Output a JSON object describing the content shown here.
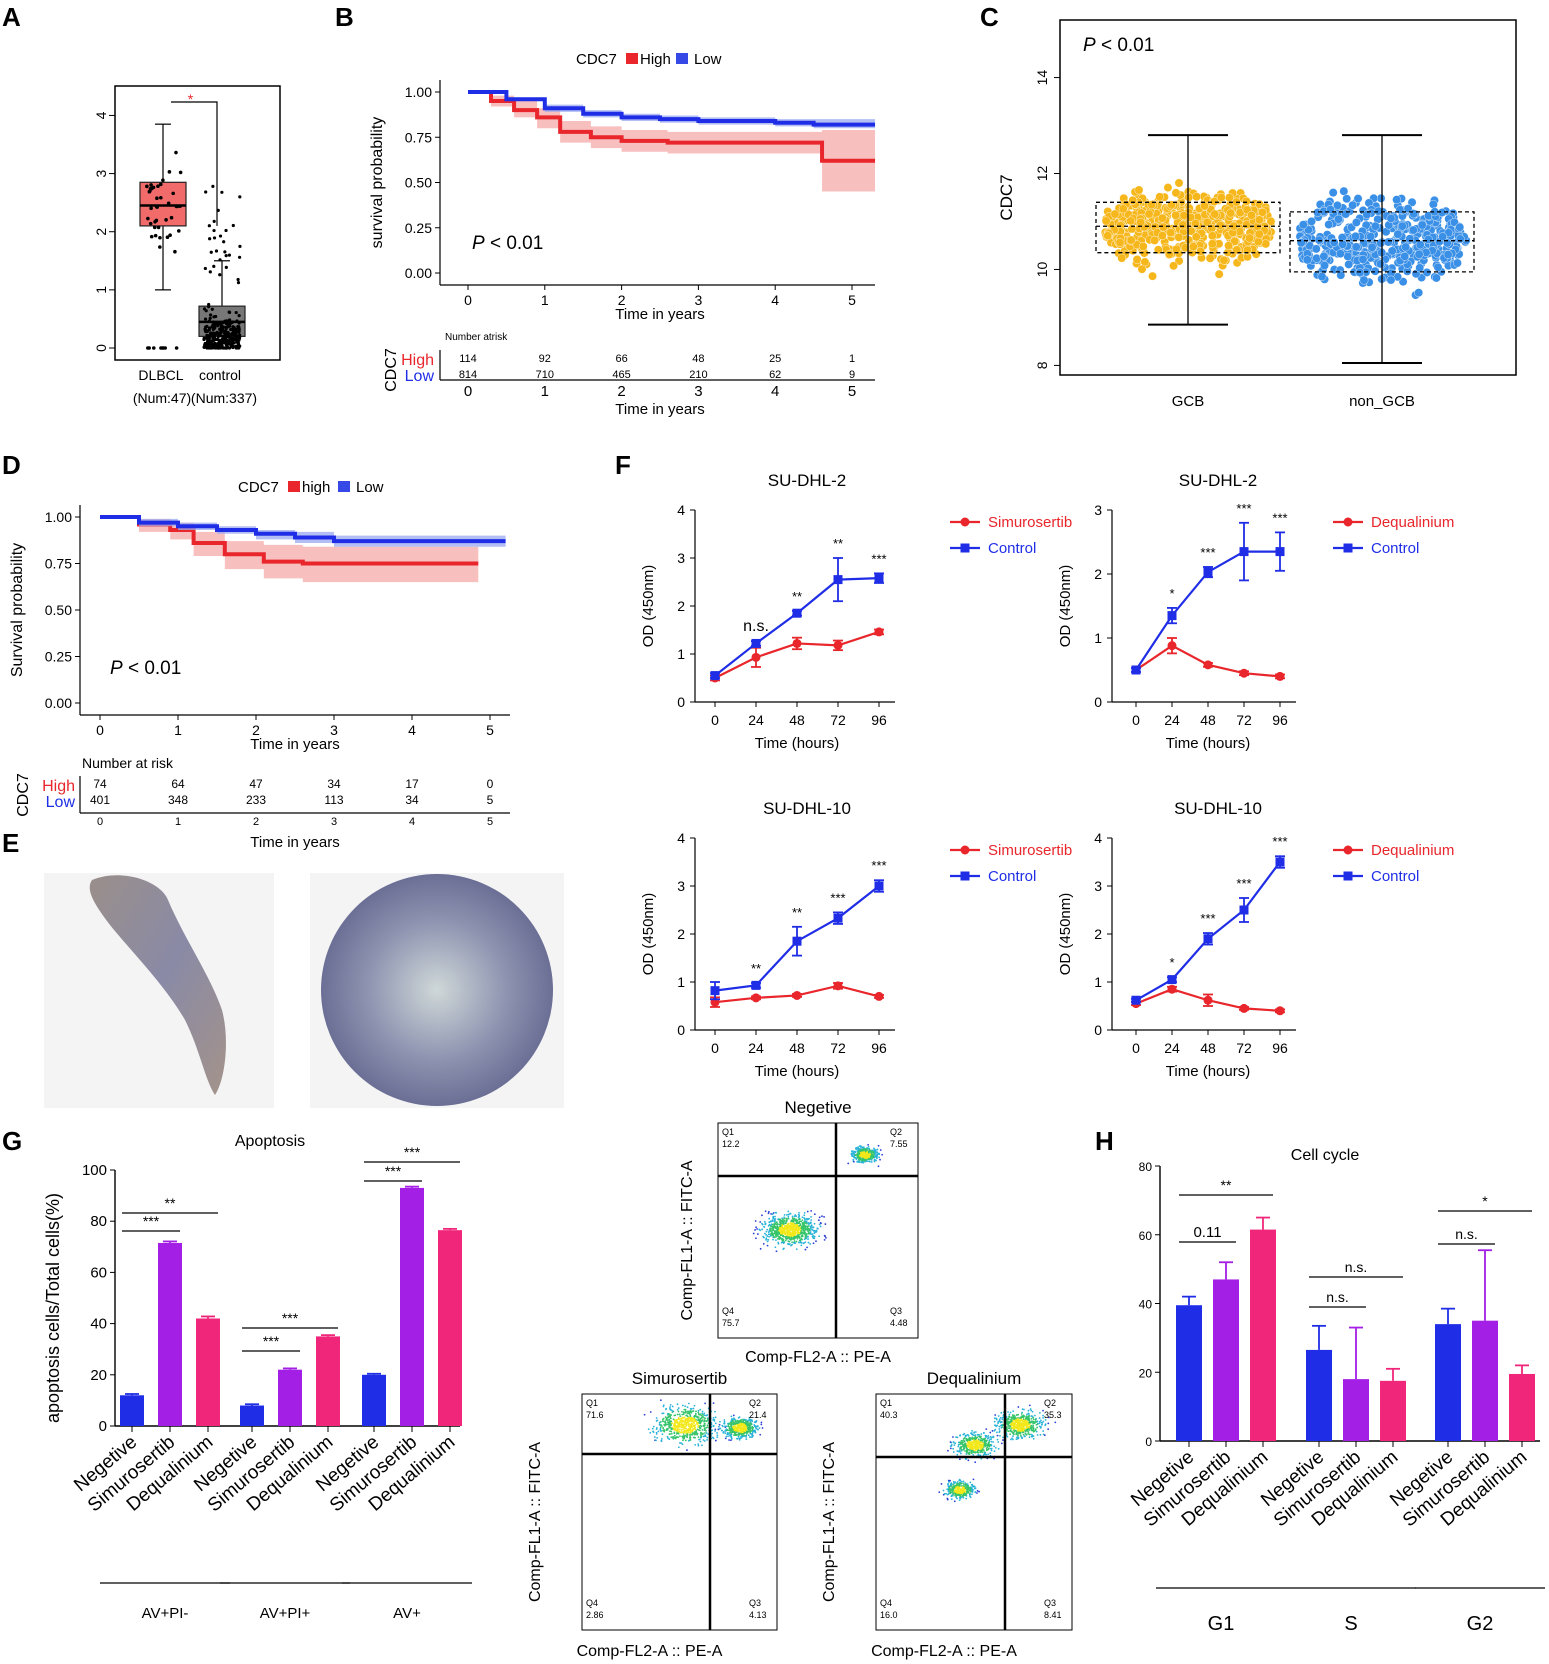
{
  "panel_labels": {
    "A": "A",
    "B": "B",
    "C": "C",
    "D": "D",
    "E": "E",
    "F": "F",
    "G": "G",
    "H": "H"
  },
  "colors": {
    "red": "#e8262b",
    "blue": "#1f2ee6",
    "purple": "#a41fe6",
    "pink": "#f0267a",
    "orange": "#f6b71c",
    "lightblue": "#3a8fe6",
    "salmon": "#f26b6b",
    "gray": "#7f7f7f"
  },
  "chart_data": [
    {
      "id": "A",
      "type": "box",
      "categories": [
        "DLBCL",
        "control"
      ],
      "sub_labels": [
        "(Num:47)",
        "(Num:337)"
      ],
      "ylim": [
        0,
        4.3
      ],
      "yticks": [
        "0",
        "1",
        "2",
        "3",
        "4"
      ],
      "sig": "*",
      "boxes": [
        {
          "q1": 2.1,
          "median": 2.45,
          "q3": 2.85,
          "whisker_low": 1.0,
          "whisker_high": 3.85
        },
        {
          "q1": 0.2,
          "median": 0.45,
          "q3": 0.72,
          "whisker_low": 0,
          "whisker_high": 1.5
        }
      ]
    },
    {
      "id": "B",
      "type": "line",
      "title": "CDC7",
      "legend": [
        "High",
        "Low"
      ],
      "ylabel": "survival probability",
      "xlabel": "Time in years",
      "yticks": [
        "0.00",
        "0.25",
        "0.50",
        "0.75",
        "1.00"
      ],
      "xticks": [
        "0",
        "1",
        "2",
        "3",
        "4",
        "5"
      ],
      "pvalue": "P < 0.01",
      "p_letter": "P",
      "p_rest": " < 0.01",
      "series": [
        {
          "name": "High",
          "x": [
            0,
            0.3,
            0.6,
            0.9,
            1.2,
            1.6,
            2.0,
            2.6,
            3.2,
            4.2,
            4.6,
            4.61,
            5.3
          ],
          "y": [
            1,
            0.95,
            0.9,
            0.86,
            0.78,
            0.75,
            0.73,
            0.72,
            0.72,
            0.72,
            0.72,
            0.62,
            0.62
          ],
          "lo": [
            1,
            0.92,
            0.86,
            0.8,
            0.72,
            0.69,
            0.67,
            0.66,
            0.66,
            0.66,
            0.66,
            0.45,
            0.45
          ],
          "hi": [
            1,
            0.98,
            0.95,
            0.91,
            0.84,
            0.81,
            0.79,
            0.78,
            0.78,
            0.78,
            0.78,
            0.79,
            0.79
          ]
        },
        {
          "name": "Low",
          "x": [
            0,
            0.5,
            1.0,
            1.5,
            2.0,
            2.5,
            3.0,
            4.0,
            4.5,
            5.3
          ],
          "y": [
            1,
            0.96,
            0.91,
            0.88,
            0.86,
            0.85,
            0.84,
            0.83,
            0.82,
            0.82
          ],
          "lo": [
            1,
            0.95,
            0.89,
            0.86,
            0.84,
            0.83,
            0.82,
            0.81,
            0.8,
            0.8
          ],
          "hi": [
            1,
            0.97,
            0.93,
            0.9,
            0.88,
            0.87,
            0.86,
            0.85,
            0.85,
            0.85
          ]
        }
      ],
      "risk": {
        "side_label": "CDC7",
        "header": "Number atrisk",
        "rows": [
          {
            "name": "High",
            "values": [
              "114",
              "92",
              "66",
              "48",
              "25",
              "1"
            ]
          },
          {
            "name": "Low",
            "values": [
              "814",
              "710",
              "465",
              "210",
              "62",
              "9"
            ]
          }
        ],
        "xlabel": "Time in years"
      }
    },
    {
      "id": "C",
      "type": "scatter",
      "categories": [
        "GCB",
        "non_GCB"
      ],
      "ylabel": "CDC7",
      "yticks": [
        "8",
        "10",
        "12",
        "14"
      ],
      "ylim": [
        7.8,
        15.2
      ],
      "pvalue": "P < 0.01",
      "p_letter": "P",
      "p_rest": " < 0.01",
      "boxes": [
        {
          "q1": 10.35,
          "median": 10.9,
          "q3": 11.4,
          "whisker_low": 8.85,
          "whisker_high": 12.8
        },
        {
          "q1": 9.95,
          "median": 10.6,
          "q3": 11.2,
          "whisker_low": 8.05,
          "whisker_high": 12.8
        }
      ]
    },
    {
      "id": "D",
      "type": "line",
      "title": "CDC7",
      "legend": [
        "high",
        "Low"
      ],
      "ylabel": "Survival probability",
      "xlabel": "Time in years",
      "yticks": [
        "0.00",
        "0.25",
        "0.50",
        "0.75",
        "1.00"
      ],
      "xticks": [
        "0",
        "1",
        "2",
        "3",
        "4",
        "5"
      ],
      "pvalue": "P < 0.01",
      "p_letter": "P",
      "p_rest": " < 0.01",
      "series": [
        {
          "name": "high",
          "x": [
            0,
            0.5,
            0.9,
            1.2,
            1.6,
            2.1,
            2.6,
            3.5,
            4.85
          ],
          "y": [
            1,
            0.96,
            0.93,
            0.86,
            0.8,
            0.76,
            0.75,
            0.75,
            0.75
          ],
          "lo": [
            1,
            0.92,
            0.88,
            0.79,
            0.72,
            0.67,
            0.65,
            0.65,
            0.65
          ],
          "hi": [
            1,
            0.99,
            0.97,
            0.92,
            0.87,
            0.85,
            0.84,
            0.84,
            0.84
          ]
        },
        {
          "name": "Low",
          "x": [
            0,
            0.5,
            1.0,
            1.5,
            2.0,
            2.5,
            3.0,
            4.0,
            5.2
          ],
          "y": [
            1,
            0.97,
            0.95,
            0.93,
            0.91,
            0.89,
            0.87,
            0.87,
            0.87
          ],
          "lo": [
            1,
            0.95,
            0.93,
            0.91,
            0.88,
            0.86,
            0.84,
            0.84,
            0.84
          ],
          "hi": [
            1,
            0.99,
            0.97,
            0.95,
            0.93,
            0.92,
            0.9,
            0.9,
            0.9
          ]
        }
      ],
      "risk": {
        "side_label": "CDC7",
        "header": "Number at risk",
        "rows": [
          {
            "name": "High",
            "values": [
              "74",
              "64",
              "47",
              "34",
              "17",
              "0"
            ]
          },
          {
            "name": "Low",
            "values": [
              "401",
              "348",
              "233",
              "113",
              "34",
              "5"
            ]
          }
        ],
        "xlabel": "Time in years"
      }
    },
    {
      "id": "F1",
      "type": "line",
      "title": "SU-DHL-2",
      "xlabel": "Time (hours)",
      "ylabel": "OD (450nm)",
      "x": [
        0,
        24,
        48,
        72,
        96
      ],
      "ylim": [
        0,
        4
      ],
      "yticks": [
        "0",
        "1",
        "2",
        "3",
        "4"
      ],
      "xticks": [
        "0",
        "24",
        "48",
        "72",
        "96"
      ],
      "series": [
        {
          "name": "Simurosertib",
          "values": [
            0.5,
            0.93,
            1.22,
            1.18,
            1.46
          ],
          "err": [
            0.05,
            0.2,
            0.12,
            0.1,
            0.05
          ]
        },
        {
          "name": "Control",
          "values": [
            0.55,
            1.22,
            1.85,
            2.55,
            2.58
          ],
          "err": [
            0.05,
            0.05,
            0.05,
            0.45,
            0.1
          ]
        }
      ],
      "sig": [
        "",
        "n.s.",
        "**",
        "**",
        "***"
      ]
    },
    {
      "id": "F2",
      "type": "line",
      "title": "SU-DHL-2",
      "xlabel": "Time (hours)",
      "ylabel": "OD (450nm)",
      "x": [
        0,
        24,
        48,
        72,
        96
      ],
      "ylim": [
        0,
        3
      ],
      "yticks": [
        "0",
        "1",
        "2",
        "3"
      ],
      "xticks": [
        "0",
        "24",
        "48",
        "72",
        "96"
      ],
      "series": [
        {
          "name": "Dequalinium",
          "values": [
            0.5,
            0.88,
            0.58,
            0.45,
            0.4
          ],
          "err": [
            0.03,
            0.12,
            0.03,
            0.03,
            0.03
          ]
        },
        {
          "name": "Control",
          "values": [
            0.5,
            1.35,
            2.03,
            2.35,
            2.35
          ],
          "err": [
            0.03,
            0.12,
            0.08,
            0.45,
            0.3
          ]
        }
      ],
      "sig": [
        "",
        "*",
        "***",
        "***",
        "***"
      ]
    },
    {
      "id": "F3",
      "type": "line",
      "title": "SU-DHL-10",
      "xlabel": "Time (hours)",
      "ylabel": "OD (450nm)",
      "x": [
        0,
        24,
        48,
        72,
        96
      ],
      "ylim": [
        0,
        4
      ],
      "yticks": [
        "0",
        "1",
        "2",
        "3",
        "4"
      ],
      "xticks": [
        "0",
        "24",
        "48",
        "72",
        "96"
      ],
      "series": [
        {
          "name": "Simurosertib",
          "values": [
            0.58,
            0.67,
            0.72,
            0.92,
            0.7
          ],
          "err": [
            0.1,
            0.03,
            0.03,
            0.06,
            0.03
          ]
        },
        {
          "name": "Control",
          "values": [
            0.82,
            0.93,
            1.85,
            2.33,
            3.0
          ],
          "err": [
            0.18,
            0.05,
            0.3,
            0.12,
            0.12
          ]
        }
      ],
      "sig": [
        "",
        "**",
        "**",
        "***",
        "***"
      ]
    },
    {
      "id": "F4",
      "type": "line",
      "title": "SU-DHL-10",
      "xlabel": "Time (hours)",
      "ylabel": "OD (450nm)",
      "x": [
        0,
        24,
        48,
        72,
        96
      ],
      "ylim": [
        0,
        4
      ],
      "yticks": [
        "0",
        "1",
        "2",
        "3",
        "4"
      ],
      "xticks": [
        "0",
        "24",
        "48",
        "72",
        "96"
      ],
      "series": [
        {
          "name": "Dequalinium",
          "values": [
            0.55,
            0.85,
            0.62,
            0.45,
            0.4
          ],
          "err": [
            0.03,
            0.05,
            0.12,
            0.03,
            0.03
          ]
        },
        {
          "name": "Control",
          "values": [
            0.62,
            1.05,
            1.9,
            2.5,
            3.5
          ],
          "err": [
            0.03,
            0.05,
            0.12,
            0.25,
            0.12
          ]
        }
      ],
      "sig": [
        "",
        "*",
        "***",
        "***",
        "***"
      ]
    },
    {
      "id": "G",
      "type": "bar",
      "title": "Apoptosis",
      "ylabel": "apoptosis cells/Total cells(%)",
      "ylim": [
        0,
        100
      ],
      "yticks": [
        "0",
        "20",
        "40",
        "60",
        "80",
        "100"
      ],
      "categories": [
        "Negetive",
        "Simurosertib",
        "Dequalinium"
      ],
      "groups": [
        "AV+PI-",
        "AV+PI+",
        "AV+"
      ],
      "values": [
        [
          12,
          71.5,
          42
        ],
        [
          8,
          22,
          35
        ],
        [
          20,
          93,
          76.5
        ]
      ],
      "err": [
        [
          0.5,
          0.6,
          0.8
        ],
        [
          0.5,
          0.5,
          0.5
        ],
        [
          0.4,
          0.5,
          0.5
        ]
      ],
      "sig": [
        [
          "***",
          "**"
        ],
        [
          "***",
          "***"
        ],
        [
          "***",
          "***"
        ]
      ]
    },
    {
      "id": "H",
      "type": "bar",
      "title": "Cell cycle",
      "ylim": [
        0,
        80
      ],
      "yticks": [
        "0",
        "20",
        "40",
        "60",
        "80"
      ],
      "categories": [
        "Negetive",
        "Simurosertib",
        "Dequalinium"
      ],
      "groups": [
        "G1",
        "S",
        "G2"
      ],
      "values": [
        [
          39.5,
          47,
          61.5
        ],
        [
          26.5,
          18,
          17.5
        ],
        [
          34,
          35,
          19.5
        ]
      ],
      "err": [
        [
          2.5,
          5,
          3.5
        ],
        [
          7,
          15,
          3.5
        ],
        [
          4.5,
          20.5,
          2.5
        ]
      ],
      "sig": [
        [
          "0.11",
          "**"
        ],
        [
          "n.s.",
          "n.s."
        ],
        [
          "n.s.",
          "*"
        ]
      ]
    }
  ],
  "flow": [
    {
      "title": "Negetive",
      "q1": "12.2",
      "q2": "7.55",
      "q3": "4.48",
      "q4": "75.7"
    },
    {
      "title": "Simurosertib",
      "q1": "71.6",
      "q2": "21.4",
      "q3": "4.13",
      "q4": "2.86"
    },
    {
      "title": "Dequalinium",
      "q1": "40.3",
      "q2": "35.3",
      "q3": "8.41",
      "q4": "16.0"
    }
  ],
  "flow_axes": {
    "x": "Comp-FL2-A :: PE-A",
    "y": "Comp-FL1-A :: FITC-A",
    "q": [
      "Q1",
      "Q2",
      "Q3",
      "Q4"
    ]
  }
}
